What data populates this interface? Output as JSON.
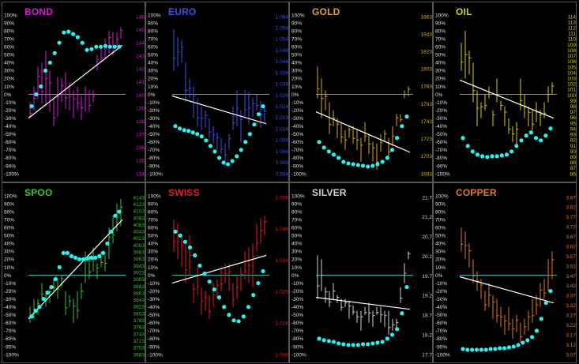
{
  "pct_labels": [
    "100%",
    "90%",
    "80%",
    "70%",
    "60%",
    "50%",
    "40%",
    "30%",
    "20%",
    "10%",
    "0%",
    "-10%",
    "-20%",
    "-30%",
    "-40%",
    "-50%",
    "-60%",
    "-70%",
    "-80%",
    "-90%",
    "-100%"
  ],
  "colors": {
    "zero_line": "#30b5b5",
    "trend_line": "#ffffff",
    "dots": "#2af0f0",
    "panel_border": "#555555"
  },
  "chart_data": [
    {
      "type": "bar",
      "title": "BOND",
      "color": "#d21fd2",
      "price_ticks": [
        "146",
        "145",
        "144",
        "143",
        "142",
        "141",
        "140",
        "139",
        "138",
        "137",
        "136",
        "135",
        "134"
      ],
      "bars_hl": [
        [
          -30,
          -10
        ],
        [
          -20,
          10
        ],
        [
          -5,
          35
        ],
        [
          -12,
          40
        ],
        [
          -15,
          55
        ],
        [
          -22,
          30
        ],
        [
          -40,
          -5
        ],
        [
          -28,
          22
        ],
        [
          -10,
          20
        ],
        [
          -18,
          28
        ],
        [
          -20,
          15
        ],
        [
          -30,
          5
        ],
        [
          -20,
          10
        ],
        [
          -32,
          -2
        ],
        [
          -22,
          10
        ],
        [
          -22,
          5
        ],
        [
          -10,
          5
        ],
        [
          30,
          50
        ],
        [
          40,
          60
        ],
        [
          45,
          70
        ],
        [
          52,
          80
        ],
        [
          50,
          78
        ],
        [
          60,
          78
        ],
        [
          70,
          85
        ]
      ],
      "trend": [
        -30,
        62
      ],
      "dots": [
        -15,
        0,
        10,
        30,
        40,
        52,
        65,
        78,
        79,
        76,
        72,
        65,
        56,
        57,
        60,
        60,
        61,
        60,
        60,
        60
      ]
    },
    {
      "type": "bar",
      "title": "EURO",
      "color": "#3b52e8",
      "price_ticks": [
        "1.064",
        "1.059",
        "1.054",
        "1.049",
        "1.044",
        "1.039",
        "1.034",
        "1.029",
        "1.024",
        "1.019",
        "1.014",
        "1.009",
        "1.004",
        "0.999",
        "0.994"
      ],
      "bars_hl": [
        [
          30,
          82
        ],
        [
          35,
          72
        ],
        [
          40,
          68
        ],
        [
          -10,
          40
        ],
        [
          -5,
          20
        ],
        [
          -30,
          10
        ],
        [
          -40,
          -5
        ],
        [
          -45,
          -15
        ],
        [
          -42,
          -20
        ],
        [
          -55,
          -30
        ],
        [
          -62,
          -40
        ],
        [
          -70,
          -48
        ],
        [
          -75,
          -55
        ],
        [
          -90,
          -62
        ],
        [
          -70,
          -50
        ],
        [
          -45,
          -15
        ],
        [
          -40,
          5
        ],
        [
          -60,
          -20
        ],
        [
          -30,
          5
        ],
        [
          -38,
          3
        ],
        [
          -28,
          -5
        ],
        [
          -20,
          0
        ],
        [
          -42,
          -8
        ],
        [
          -35,
          -15
        ]
      ],
      "trend": [
        -2,
        -37
      ],
      "dots": [
        -40,
        -43,
        -45,
        -46,
        -48,
        -50,
        -53,
        -58,
        -65,
        -72,
        -80,
        -86,
        -88,
        -84,
        -78,
        -70,
        -60,
        -50,
        -38,
        -25,
        -15
      ]
    },
    {
      "type": "bar",
      "title": "GOLD",
      "color": "#d7a62a",
      "price_ticks": [
        "1863",
        "1843",
        "1823",
        "1803",
        "1783",
        "1763",
        "1743",
        "1723",
        "1703",
        "1683"
      ],
      "bars_hl": [
        [
          -5,
          35
        ],
        [
          -30,
          20
        ],
        [
          -20,
          5
        ],
        [
          -50,
          -10
        ],
        [
          -40,
          -20
        ],
        [
          -55,
          -30
        ],
        [
          -62,
          -35
        ],
        [
          -70,
          -45
        ],
        [
          -55,
          -40
        ],
        [
          -62,
          -40
        ],
        [
          -70,
          -45
        ],
        [
          -85,
          -55
        ],
        [
          -60,
          -35
        ],
        [
          -75,
          -50
        ],
        [
          -85,
          -60
        ],
        [
          -95,
          -62
        ],
        [
          -72,
          -50
        ],
        [
          -60,
          -45
        ],
        [
          -80,
          -55
        ],
        [
          -65,
          -40
        ],
        [
          -40,
          -25
        ],
        [
          -35,
          -25
        ],
        [
          -5,
          5
        ],
        [
          -2,
          10
        ]
      ],
      "trend": [
        -22,
        -73
      ],
      "dots": [
        -60,
        -67,
        -72,
        -76,
        -80,
        -85,
        -87,
        -88,
        -89,
        -90,
        -91,
        -90,
        -88,
        -85,
        -80,
        -70,
        -55,
        -40,
        -28
      ]
    },
    {
      "type": "bar",
      "title": "OIL",
      "color": "#d5cb22",
      "price_ticks": [
        "114",
        "113",
        "112",
        "111",
        "110",
        "109",
        "108",
        "107",
        "106",
        "105",
        "104",
        "103",
        "102",
        "101",
        "100",
        "99",
        "98",
        "97",
        "96",
        "95",
        "94",
        "93",
        "92",
        "91",
        "90",
        "89",
        "88",
        "87",
        "86"
      ],
      "bars_hl": [
        [
          30,
          65
        ],
        [
          20,
          80
        ],
        [
          25,
          55
        ],
        [
          -10,
          40
        ],
        [
          -40,
          5
        ],
        [
          -30,
          -10
        ],
        [
          -20,
          0
        ],
        [
          -5,
          10
        ],
        [
          -40,
          -20
        ],
        [
          -10,
          20
        ],
        [
          -20,
          -8
        ],
        [
          -40,
          -15
        ],
        [
          -50,
          -30
        ],
        [
          -60,
          -40
        ],
        [
          -65,
          -35
        ],
        [
          -20,
          20
        ],
        [
          -30,
          0
        ],
        [
          -40,
          -15
        ],
        [
          -45,
          -20
        ],
        [
          -35,
          -10
        ],
        [
          -40,
          -20
        ],
        [
          -30,
          -10
        ],
        [
          -10,
          10
        ],
        [
          0,
          15
        ]
      ],
      "trend": [
        18,
        -30
      ],
      "dots": [
        -55,
        -65,
        -72,
        -76,
        -78,
        -79,
        -78,
        -78,
        -77,
        -76,
        -72,
        -65,
        -58,
        -52,
        -48,
        -55,
        -58,
        -52,
        -43
      ]
    },
    {
      "type": "bar",
      "title": "SPOO",
      "color": "#3ac32f",
      "price_ticks": [
        "4143",
        "4123",
        "4103",
        "4083",
        "4063",
        "4043",
        "4023",
        "4003",
        "3983",
        "3963",
        "3943",
        "3923",
        "3903",
        "3883",
        "3863",
        "3843",
        "3823",
        "3803",
        "3783",
        "3763",
        "3743",
        "3723",
        "3703",
        "3683"
      ],
      "bars_hl": [
        [
          -60,
          -40
        ],
        [
          -55,
          -30
        ],
        [
          -50,
          -30
        ],
        [
          -30,
          -10
        ],
        [
          -40,
          -20
        ],
        [
          -35,
          -15
        ],
        [
          -20,
          -5
        ],
        [
          -30,
          -5
        ],
        [
          -15,
          0
        ],
        [
          -50,
          -20
        ],
        [
          -40,
          -25
        ],
        [
          -60,
          -30
        ],
        [
          -55,
          -20
        ],
        [
          -30,
          -10
        ],
        [
          -10,
          30
        ],
        [
          -5,
          25
        ],
        [
          5,
          35
        ],
        [
          -5,
          15
        ],
        [
          10,
          30
        ],
        [
          5,
          25
        ],
        [
          20,
          60
        ],
        [
          40,
          75
        ],
        [
          55,
          90
        ],
        [
          62,
          96
        ]
      ],
      "trend": [
        -55,
        70
      ],
      "dots": [
        -52,
        -45,
        -40,
        -30,
        -22,
        -15,
        -5,
        10,
        28,
        28,
        24,
        22,
        20,
        20,
        21,
        22,
        22,
        24,
        28,
        40,
        55,
        75,
        80
      ]
    },
    {
      "type": "bar",
      "title": "SWISS",
      "color": "#e11e1e",
      "price_ticks": [
        "1.056",
        "1.046",
        "1.036",
        "1.026",
        "1.016",
        "1.006"
      ],
      "bars_hl": [
        [
          30,
          70
        ],
        [
          20,
          65
        ],
        [
          10,
          50
        ],
        [
          -10,
          45
        ],
        [
          0,
          50
        ],
        [
          -35,
          -10
        ],
        [
          -25,
          10
        ],
        [
          -50,
          -15
        ],
        [
          -45,
          -20
        ],
        [
          -55,
          -25
        ],
        [
          -40,
          -10
        ],
        [
          -30,
          -5
        ],
        [
          -20,
          10
        ],
        [
          -10,
          15
        ],
        [
          -20,
          15
        ],
        [
          -40,
          -10
        ],
        [
          -30,
          0
        ],
        [
          -20,
          10
        ],
        [
          -5,
          30
        ],
        [
          -10,
          35
        ],
        [
          -15,
          40
        ],
        [
          30,
          65
        ],
        [
          40,
          72
        ],
        [
          50,
          75
        ]
      ],
      "trend": [
        -10,
        25
      ],
      "dots": [
        55,
        50,
        42,
        35,
        25,
        12,
        2,
        -8,
        -18,
        -28,
        -40,
        -50,
        -57,
        -58,
        -52,
        -40,
        -25,
        -10,
        5
      ]
    },
    {
      "type": "bar",
      "title": "SILVER",
      "color": "#d3d3d3",
      "price_ticks": [
        "21.7",
        "21.2",
        "20.7",
        "20.2",
        "19.7",
        "19.2",
        "18.7",
        "18.2",
        "17.7"
      ],
      "bars_hl": [
        [
          -30,
          25
        ],
        [
          -20,
          20
        ],
        [
          -35,
          -15
        ],
        [
          -40,
          -20
        ],
        [
          -30,
          -10
        ],
        [
          -35,
          -25
        ],
        [
          -45,
          -30
        ],
        [
          -40,
          -30
        ],
        [
          -55,
          -32
        ],
        [
          -50,
          -38
        ],
        [
          -60,
          -45
        ],
        [
          -70,
          -45
        ],
        [
          -50,
          -40
        ],
        [
          -60,
          -35
        ],
        [
          -65,
          -45
        ],
        [
          -50,
          -40
        ],
        [
          -60,
          -40
        ],
        [
          -65,
          -45
        ],
        [
          -75,
          -45
        ],
        [
          -70,
          -55
        ],
        [
          -70,
          -55
        ],
        [
          -35,
          -15
        ],
        [
          -10,
          15
        ],
        [
          20,
          30
        ]
      ],
      "trend": [
        -28,
        -43
      ],
      "dots": [
        -80,
        -82,
        -83,
        -84,
        -86,
        -87,
        -88,
        -88,
        -88,
        -87,
        -87,
        -86,
        -85,
        -84,
        -80,
        -75,
        -68,
        -48,
        -15
      ]
    },
    {
      "type": "bar",
      "title": "COPPER",
      "color": "#e0772a",
      "price_ticks": [
        "3.87",
        "3.82",
        "3.77",
        "3.72",
        "3.67",
        "3.62",
        "3.57",
        "3.52",
        "3.47",
        "3.42",
        "3.37",
        "3.32",
        "3.27",
        "3.22",
        "3.17",
        "3.12",
        "3.07"
      ],
      "bars_hl": [
        [
          30,
          60
        ],
        [
          20,
          55
        ],
        [
          10,
          40
        ],
        [
          -10,
          20
        ],
        [
          -20,
          5
        ],
        [
          -30,
          -5
        ],
        [
          -45,
          -20
        ],
        [
          -40,
          -10
        ],
        [
          -55,
          -25
        ],
        [
          -60,
          -30
        ],
        [
          -65,
          -40
        ],
        [
          -75,
          -50
        ],
        [
          -70,
          -40
        ],
        [
          -80,
          -55
        ],
        [
          -72,
          -50
        ],
        [
          -85,
          -60
        ],
        [
          -75,
          -55
        ],
        [
          -70,
          -45
        ],
        [
          -60,
          -30
        ],
        [
          -50,
          -25
        ],
        [
          -40,
          -10
        ],
        [
          -30,
          -5
        ],
        [
          -20,
          20
        ],
        [
          -5,
          30
        ]
      ],
      "trend": [
        -2,
        -35
      ],
      "dots": [
        -93,
        -94,
        -94,
        -94,
        -94,
        -94,
        -93,
        -93,
        -92,
        -92,
        -91,
        -90,
        -88,
        -85,
        -82,
        -78,
        -70,
        -55,
        -35,
        -20
      ]
    }
  ]
}
